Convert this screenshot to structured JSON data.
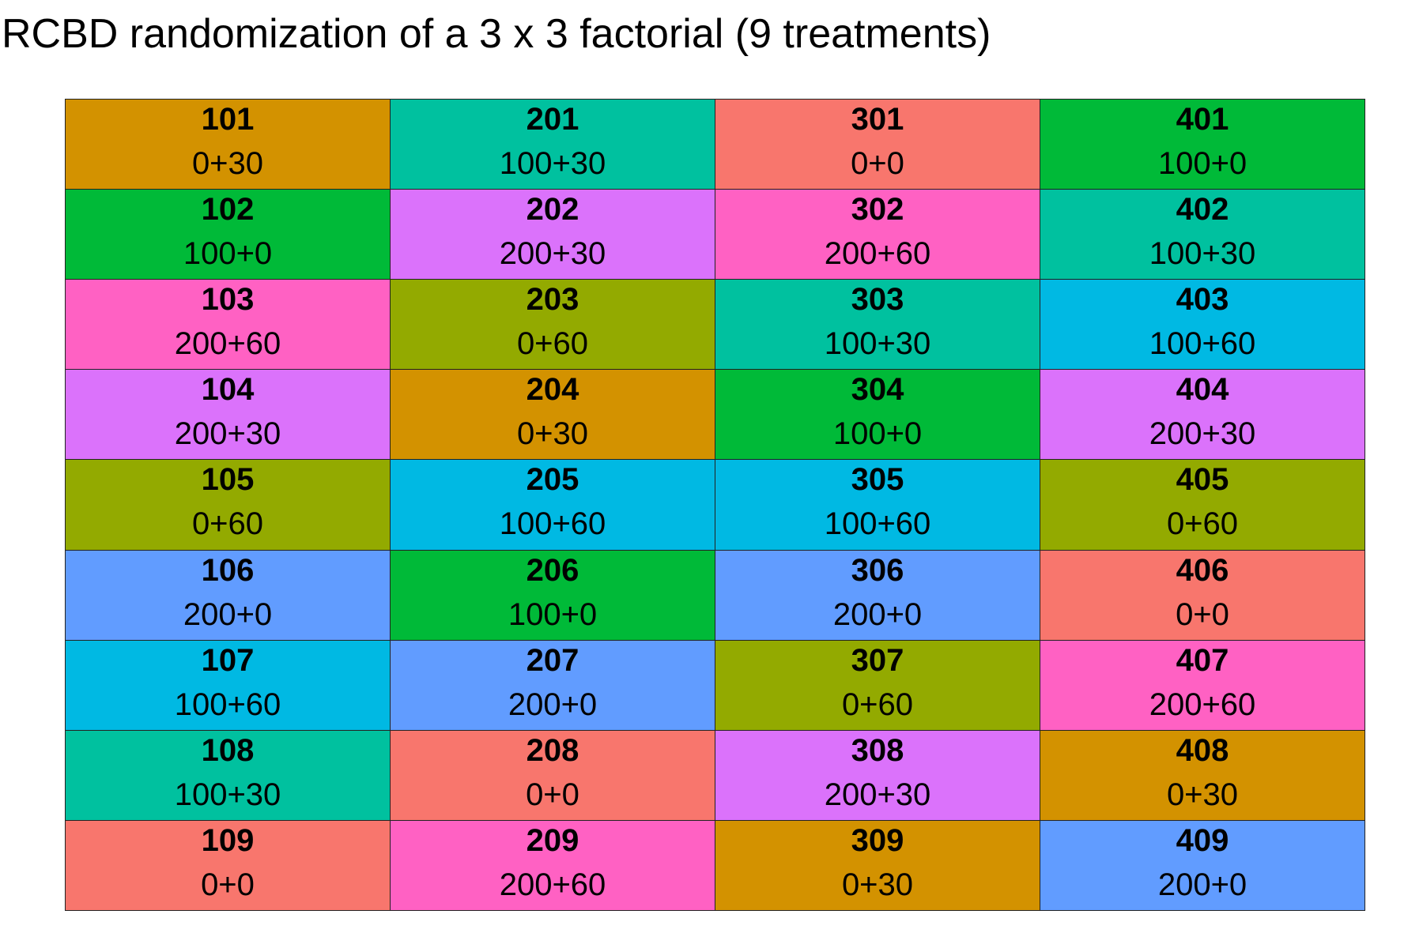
{
  "title": "RCBD randomization of a 3 x 3 factorial (9 treatments)",
  "treatment_colors": {
    "0+0": "#F8766D",
    "0+30": "#D39200",
    "0+60": "#93AA00",
    "100+0": "#00BA38",
    "100+30": "#00C19F",
    "100+60": "#00B9E3",
    "200+0": "#619CFF",
    "200+30": "#DB72FB",
    "200+60": "#FF61C3"
  },
  "chart_data": {
    "type": "table",
    "blocks": [
      {
        "plots": [
          {
            "id": "101",
            "treatment": "0+30"
          },
          {
            "id": "102",
            "treatment": "100+0"
          },
          {
            "id": "103",
            "treatment": "200+60"
          },
          {
            "id": "104",
            "treatment": "200+30"
          },
          {
            "id": "105",
            "treatment": "0+60"
          },
          {
            "id": "106",
            "treatment": "200+0"
          },
          {
            "id": "107",
            "treatment": "100+60"
          },
          {
            "id": "108",
            "treatment": "100+30"
          },
          {
            "id": "109",
            "treatment": "0+0"
          }
        ]
      },
      {
        "plots": [
          {
            "id": "201",
            "treatment": "100+30"
          },
          {
            "id": "202",
            "treatment": "200+30"
          },
          {
            "id": "203",
            "treatment": "0+60"
          },
          {
            "id": "204",
            "treatment": "0+30"
          },
          {
            "id": "205",
            "treatment": "100+60"
          },
          {
            "id": "206",
            "treatment": "100+0"
          },
          {
            "id": "207",
            "treatment": "200+0"
          },
          {
            "id": "208",
            "treatment": "0+0"
          },
          {
            "id": "209",
            "treatment": "200+60"
          }
        ]
      },
      {
        "plots": [
          {
            "id": "301",
            "treatment": "0+0"
          },
          {
            "id": "302",
            "treatment": "200+60"
          },
          {
            "id": "303",
            "treatment": "100+30"
          },
          {
            "id": "304",
            "treatment": "100+0"
          },
          {
            "id": "305",
            "treatment": "100+60"
          },
          {
            "id": "306",
            "treatment": "200+0"
          },
          {
            "id": "307",
            "treatment": "0+60"
          },
          {
            "id": "308",
            "treatment": "200+30"
          },
          {
            "id": "309",
            "treatment": "0+30"
          }
        ]
      },
      {
        "plots": [
          {
            "id": "401",
            "treatment": "100+0"
          },
          {
            "id": "402",
            "treatment": "100+30"
          },
          {
            "id": "403",
            "treatment": "100+60"
          },
          {
            "id": "404",
            "treatment": "200+30"
          },
          {
            "id": "405",
            "treatment": "0+60"
          },
          {
            "id": "406",
            "treatment": "0+0"
          },
          {
            "id": "407",
            "treatment": "200+60"
          },
          {
            "id": "408",
            "treatment": "0+30"
          },
          {
            "id": "409",
            "treatment": "200+0"
          }
        ]
      }
    ]
  }
}
